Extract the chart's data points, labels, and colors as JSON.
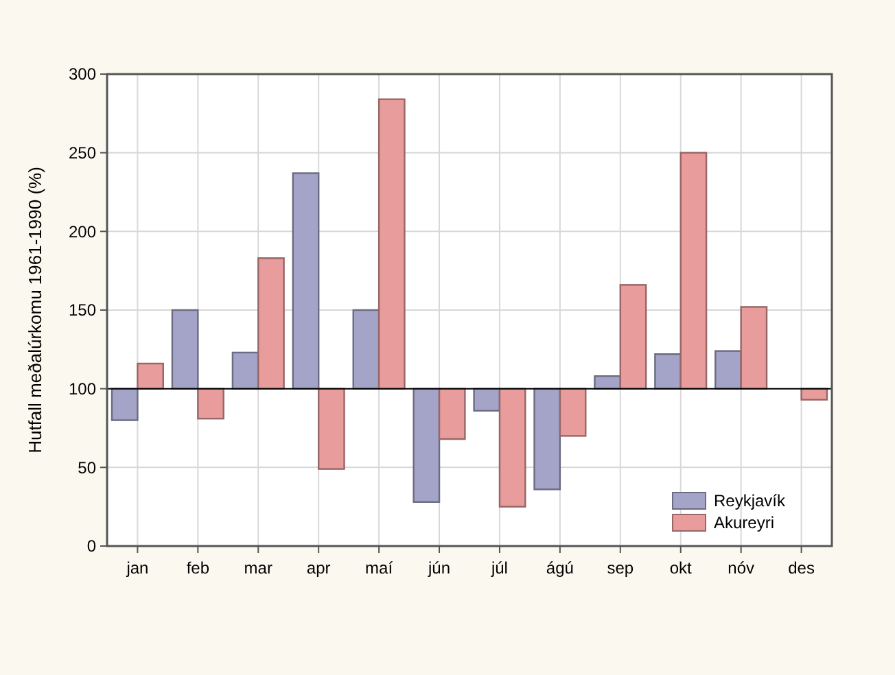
{
  "chart_data": {
    "type": "bar",
    "ylabel": "Hutfall meðalúrkomu 1961-1990 (%)",
    "categories": [
      "jan",
      "feb",
      "mar",
      "apr",
      "maí",
      "jún",
      "júl",
      "ágú",
      "sep",
      "okt",
      "nóv",
      "des"
    ],
    "series": [
      {
        "name": "Reykjavík",
        "color": "#a4a4c8",
        "base": [
          100,
          100,
          100,
          100,
          100,
          100,
          100,
          100,
          100,
          100,
          100,
          null
        ],
        "values": [
          -20,
          50,
          23,
          137,
          50,
          -72,
          -14,
          -64,
          8,
          22,
          24,
          null
        ]
      },
      {
        "name": "Akureyri",
        "color": "#e89c9c",
        "base": [
          100,
          100,
          100,
          100,
          100,
          100,
          100,
          100,
          100,
          100,
          100,
          100
        ],
        "values": [
          16,
          -19,
          83,
          -51,
          184,
          -32,
          -75,
          -30,
          66,
          150,
          52,
          -7
        ]
      }
    ],
    "ylim": [
      0,
      300
    ],
    "yticks": [
      0,
      50,
      100,
      150,
      200,
      250,
      300
    ],
    "grid": true,
    "legend": "bottom right",
    "ref_lines": [
      {
        "axis": "y",
        "value": 100,
        "color": "#000000"
      }
    ]
  }
}
